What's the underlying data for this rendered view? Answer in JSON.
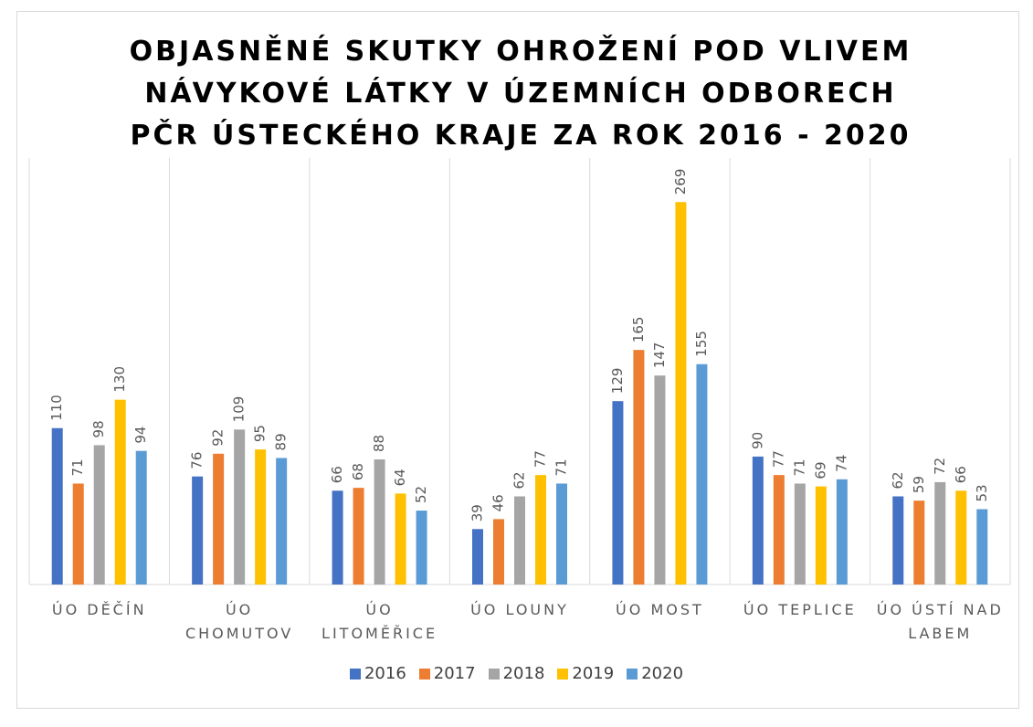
{
  "chart_data": {
    "type": "bar",
    "title": "OBJASNĚNÉ SKUTKY OHROŽENÍ POD VLIVEM NÁVYKOVÉ LÁTKY V ÚZEMNÍCH ODBORECH PČR ÚSTECKÉHO KRAJE ZA ROK 2016 - 2020",
    "categories": [
      "ÚO DĚČÍN",
      "ÚO CHOMUTOV",
      "ÚO LITOMĚŘICE",
      "ÚO LOUNY",
      "ÚO MOST",
      "ÚO TEPLICE",
      "ÚO ÚSTÍ NAD LABEM"
    ],
    "series": [
      {
        "name": "2016",
        "color": "#4472c4",
        "values": [
          110,
          76,
          66,
          39,
          129,
          90,
          62
        ]
      },
      {
        "name": "2017",
        "color": "#ed7d31",
        "values": [
          71,
          92,
          68,
          46,
          165,
          77,
          59
        ]
      },
      {
        "name": "2018",
        "color": "#a5a5a5",
        "values": [
          98,
          109,
          88,
          62,
          147,
          71,
          72
        ]
      },
      {
        "name": "2019",
        "color": "#ffc000",
        "values": [
          130,
          95,
          64,
          77,
          269,
          69,
          66
        ]
      },
      {
        "name": "2020",
        "color": "#5b9bd5",
        "values": [
          94,
          89,
          52,
          71,
          155,
          74,
          53
        ]
      }
    ],
    "ylim": [
      0,
      300
    ],
    "legend": "bottom"
  }
}
